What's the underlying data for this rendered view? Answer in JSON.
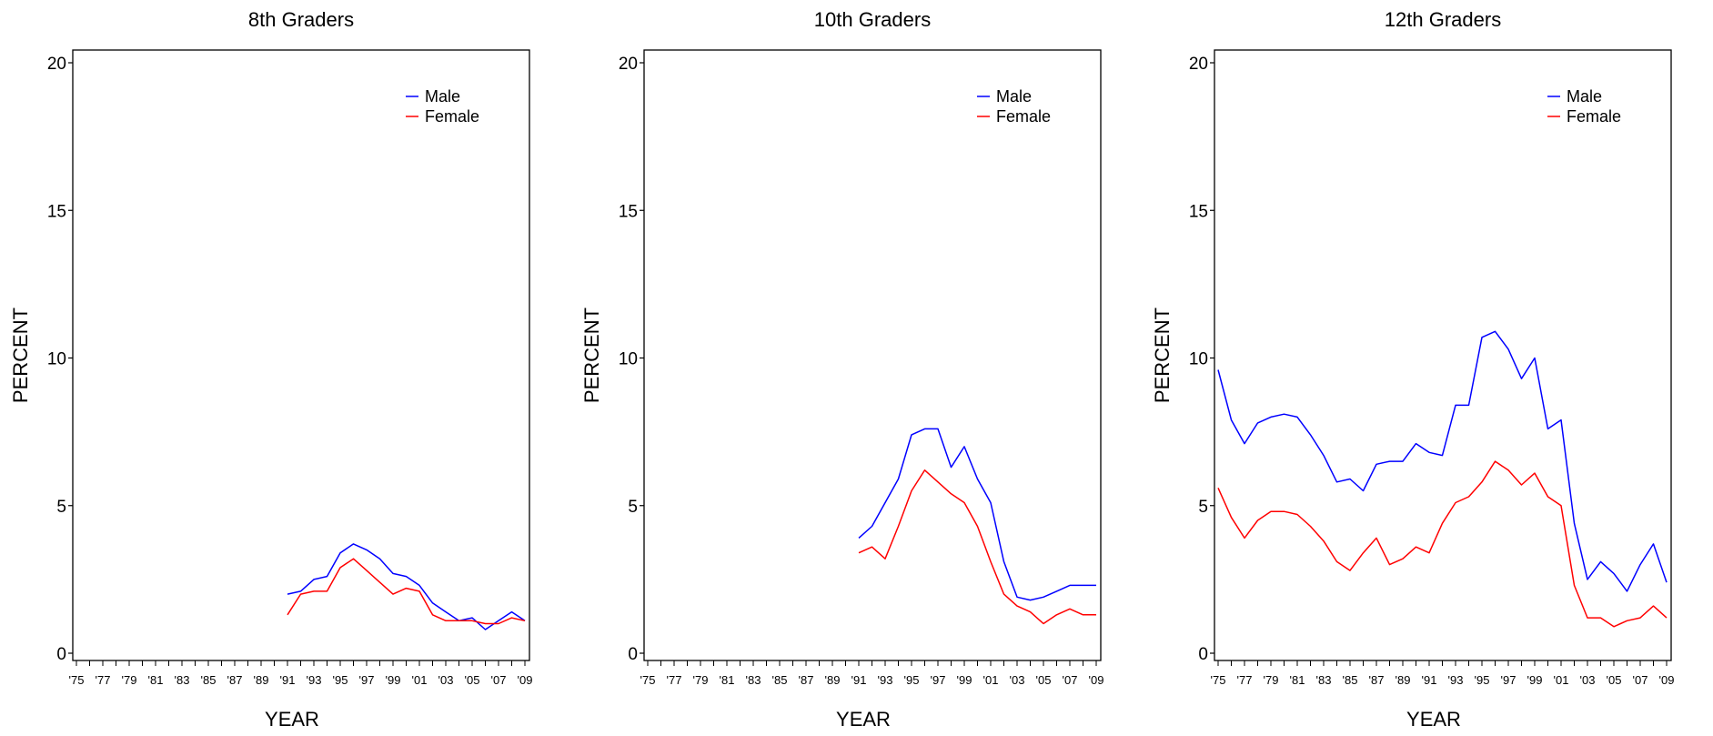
{
  "chart_data": [
    {
      "type": "line",
      "title": "8th Graders",
      "xlabel": "YEAR",
      "ylabel": "PERCENT",
      "xlim": [
        1975,
        2009
      ],
      "ylim": [
        0,
        20
      ],
      "yticks": [
        0,
        5,
        10,
        15,
        20
      ],
      "xtick_labels": [
        "'75",
        "'77",
        "'79",
        "'81",
        "'83",
        "'85",
        "'87",
        "'89",
        "'91",
        "'93",
        "'95",
        "'97",
        "'99",
        "'01",
        "'03",
        "'05",
        "'07",
        "'09"
      ],
      "legend_position": "top-right",
      "grid": false,
      "series": [
        {
          "name": "Male",
          "color": "#0000ff",
          "x": [
            1991,
            1992,
            1993,
            1994,
            1995,
            1996,
            1997,
            1998,
            1999,
            2000,
            2001,
            2002,
            2003,
            2004,
            2005,
            2006,
            2007,
            2008,
            2009
          ],
          "y": [
            2.0,
            2.1,
            2.5,
            2.6,
            3.4,
            3.7,
            3.5,
            3.2,
            2.7,
            2.6,
            2.3,
            1.7,
            1.4,
            1.1,
            1.2,
            0.8,
            1.1,
            1.4,
            1.1
          ]
        },
        {
          "name": "Female",
          "color": "#ff0000",
          "x": [
            1991,
            1992,
            1993,
            1994,
            1995,
            1996,
            1997,
            1998,
            1999,
            2000,
            2001,
            2002,
            2003,
            2004,
            2005,
            2006,
            2007,
            2008,
            2009
          ],
          "y": [
            1.3,
            2.0,
            2.1,
            2.1,
            2.9,
            3.2,
            2.8,
            2.4,
            2.0,
            2.2,
            2.1,
            1.3,
            1.1,
            1.1,
            1.1,
            1.0,
            1.0,
            1.2,
            1.1
          ]
        }
      ]
    },
    {
      "type": "line",
      "title": "10th Graders",
      "xlabel": "YEAR",
      "ylabel": "PERCENT",
      "xlim": [
        1975,
        2009
      ],
      "ylim": [
        0,
        20
      ],
      "yticks": [
        0,
        5,
        10,
        15,
        20
      ],
      "xtick_labels": [
        "'75",
        "'77",
        "'79",
        "'81",
        "'83",
        "'85",
        "'87",
        "'89",
        "'91",
        "'93",
        "'95",
        "'97",
        "'99",
        "'01",
        "'03",
        "'05",
        "'07",
        "'09"
      ],
      "legend_position": "top-right",
      "grid": false,
      "series": [
        {
          "name": "Male",
          "color": "#0000ff",
          "x": [
            1991,
            1992,
            1993,
            1994,
            1995,
            1996,
            1997,
            1998,
            1999,
            2000,
            2001,
            2002,
            2003,
            2004,
            2005,
            2006,
            2007,
            2008,
            2009
          ],
          "y": [
            3.9,
            4.3,
            5.1,
            5.9,
            7.4,
            7.6,
            7.6,
            6.3,
            7.0,
            5.9,
            5.1,
            3.1,
            1.9,
            1.8,
            1.9,
            2.1,
            2.3,
            2.3,
            2.3
          ]
        },
        {
          "name": "Female",
          "color": "#ff0000",
          "x": [
            1991,
            1992,
            1993,
            1994,
            1995,
            1996,
            1997,
            1998,
            1999,
            2000,
            2001,
            2002,
            2003,
            2004,
            2005,
            2006,
            2007,
            2008,
            2009
          ],
          "y": [
            3.4,
            3.6,
            3.2,
            4.3,
            5.5,
            6.2,
            5.8,
            5.4,
            5.1,
            4.3,
            3.1,
            2.0,
            1.6,
            1.4,
            1.0,
            1.3,
            1.5,
            1.3,
            1.3
          ]
        }
      ]
    },
    {
      "type": "line",
      "title": "12th Graders",
      "xlabel": "YEAR",
      "ylabel": "PERCENT",
      "xlim": [
        1975,
        2009
      ],
      "ylim": [
        0,
        20
      ],
      "yticks": [
        0,
        5,
        10,
        15,
        20
      ],
      "xtick_labels": [
        "'75",
        "'77",
        "'79",
        "'81",
        "'83",
        "'85",
        "'87",
        "'89",
        "'91",
        "'93",
        "'95",
        "'97",
        "'99",
        "'01",
        "'03",
        "'05",
        "'07",
        "'09"
      ],
      "legend_position": "top-right",
      "grid": false,
      "series": [
        {
          "name": "Male",
          "color": "#0000ff",
          "x": [
            1975,
            1976,
            1977,
            1978,
            1979,
            1980,
            1981,
            1982,
            1983,
            1984,
            1985,
            1986,
            1987,
            1988,
            1989,
            1990,
            1991,
            1992,
            1993,
            1994,
            1995,
            1996,
            1997,
            1998,
            1999,
            2000,
            2001,
            2002,
            2003,
            2004,
            2005,
            2006,
            2007,
            2008,
            2009
          ],
          "y": [
            9.6,
            7.9,
            7.1,
            7.8,
            8.0,
            8.1,
            8.0,
            7.4,
            6.7,
            5.8,
            5.9,
            5.5,
            6.4,
            6.5,
            6.5,
            7.1,
            6.8,
            6.7,
            8.4,
            8.4,
            10.7,
            10.9,
            10.3,
            9.3,
            10.0,
            7.6,
            7.9,
            4.4,
            2.5,
            3.1,
            2.7,
            2.1,
            3.0,
            3.7,
            2.4
          ]
        },
        {
          "name": "Female",
          "color": "#ff0000",
          "x": [
            1975,
            1976,
            1977,
            1978,
            1979,
            1980,
            1981,
            1982,
            1983,
            1984,
            1985,
            1986,
            1987,
            1988,
            1989,
            1990,
            1991,
            1992,
            1993,
            1994,
            1995,
            1996,
            1997,
            1998,
            1999,
            2000,
            2001,
            2002,
            2003,
            2004,
            2005,
            2006,
            2007,
            2008,
            2009
          ],
          "y": [
            5.6,
            4.6,
            3.9,
            4.5,
            4.8,
            4.8,
            4.7,
            4.3,
            3.8,
            3.1,
            2.8,
            3.4,
            3.9,
            3.0,
            3.2,
            3.6,
            3.4,
            4.4,
            5.1,
            5.3,
            5.8,
            6.5,
            6.2,
            5.7,
            6.1,
            5.3,
            5.0,
            2.3,
            1.2,
            1.2,
            0.9,
            1.1,
            1.2,
            1.6,
            1.2
          ]
        }
      ]
    }
  ]
}
